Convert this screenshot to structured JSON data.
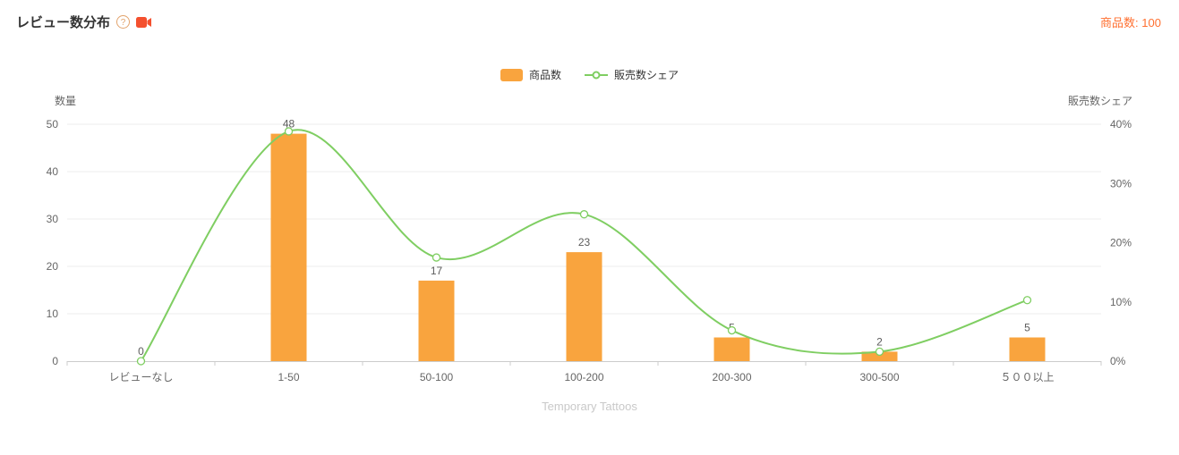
{
  "header": {
    "title": "レビュー数分布",
    "help_glyph": "?",
    "product_count_label": "商品数:",
    "product_count_value": "100"
  },
  "colors": {
    "bar": "#F9A43E",
    "line": "#7FCE62",
    "count_text": "#FF7031",
    "video_icon": "#F4502E",
    "help_icon": "#E2A36C"
  },
  "legend": [
    {
      "label": "商品数"
    },
    {
      "label": "販売数シェア"
    }
  ],
  "chart_data": {
    "type": "bar",
    "subtype": "bar + smooth line combo (ECharts style)",
    "categories": [
      "レビューなし",
      "1-50",
      "50-100",
      "100-200",
      "200-300",
      "300-500",
      "５００以上"
    ],
    "series": [
      {
        "name": "商品数",
        "type": "bar",
        "y_axis": "left",
        "values": [
          0,
          48,
          17,
          23,
          5,
          2,
          5
        ],
        "labels": [
          "0",
          "48",
          "17",
          "23",
          "5",
          "2",
          "5"
        ]
      },
      {
        "name": "販売数シェア",
        "type": "line",
        "y_axis": "right",
        "values_percent": [
          0,
          38.8,
          17.5,
          24.8,
          5.2,
          1.6,
          10.3
        ]
      }
    ],
    "left_axis": {
      "name": "数量",
      "min": 0,
      "max": 50,
      "ticks": [
        0,
        10,
        20,
        30,
        40,
        50
      ]
    },
    "right_axis": {
      "name": "販売数シェア",
      "min": 0,
      "max": 40,
      "ticks": [
        "0%",
        "10%",
        "20%",
        "30%",
        "40%"
      ]
    },
    "grid": "horizontal gridlines only",
    "legend_position": "top center",
    "footer": "Temporary Tattoos"
  }
}
